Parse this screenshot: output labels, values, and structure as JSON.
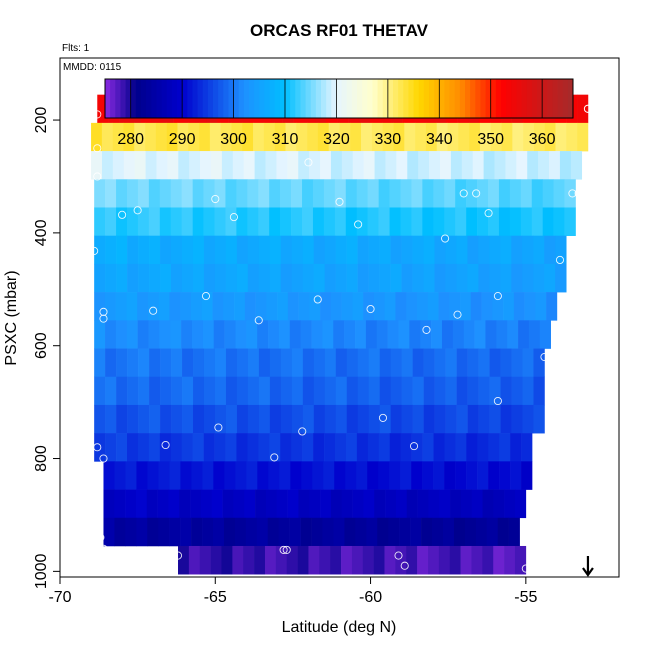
{
  "chart_data": {
    "type": "heatmap",
    "title": "ORCAS RF01 THETAV",
    "annotations": [
      "Flts: 1",
      "MMDD: 0115"
    ],
    "xlabel": "Latitude (deg N)",
    "ylabel": "PSXC (mbar)",
    "xlim": [
      -70,
      -52
    ],
    "ylim": [
      1010,
      90
    ],
    "y_reversed": true,
    "x_ticks": [
      -70,
      -65,
      -60,
      -55
    ],
    "y_ticks": [
      200,
      400,
      600,
      800,
      1000
    ],
    "colorbar": {
      "range": [
        275,
        366
      ],
      "ticks": [
        280,
        290,
        300,
        310,
        320,
        330,
        340,
        350,
        360
      ],
      "stops": [
        {
          "v": 275,
          "c": "#8a2be2"
        },
        {
          "v": 281,
          "c": "#00008b"
        },
        {
          "v": 290,
          "c": "#0000cd"
        },
        {
          "v": 302,
          "c": "#1e90ff"
        },
        {
          "v": 310,
          "c": "#00bfff"
        },
        {
          "v": 320,
          "c": "#e6f5ff"
        },
        {
          "v": 327,
          "c": "#ffffcc"
        },
        {
          "v": 336,
          "c": "#ffd700"
        },
        {
          "v": 344,
          "c": "#ff8c00"
        },
        {
          "v": 352,
          "c": "#ff0000"
        },
        {
          "v": 366,
          "c": "#a52a2a"
        }
      ]
    },
    "pressure_bands": [
      {
        "p": 180,
        "value": 355,
        "lat_min": -68.8,
        "lat_max": -53.0
      },
      {
        "p": 230,
        "value": 333,
        "lat_min": -69.0,
        "lat_max": -53.0
      },
      {
        "p": 280,
        "value": 320,
        "lat_min": -69.0,
        "lat_max": -53.2
      },
      {
        "p": 330,
        "value": 315,
        "lat_min": -68.9,
        "lat_max": -53.4
      },
      {
        "p": 380,
        "value": 312,
        "lat_min": -68.9,
        "lat_max": -53.4
      },
      {
        "p": 430,
        "value": 307,
        "lat_min": -68.9,
        "lat_max": -53.7
      },
      {
        "p": 480,
        "value": 306,
        "lat_min": -68.9,
        "lat_max": -53.7
      },
      {
        "p": 530,
        "value": 304,
        "lat_min": -68.9,
        "lat_max": -54.0
      },
      {
        "p": 580,
        "value": 302,
        "lat_min": -68.9,
        "lat_max": -54.2
      },
      {
        "p": 630,
        "value": 300,
        "lat_min": -68.9,
        "lat_max": -54.4
      },
      {
        "p": 680,
        "value": 299,
        "lat_min": -68.9,
        "lat_max": -54.4
      },
      {
        "p": 730,
        "value": 297,
        "lat_min": -68.9,
        "lat_max": -54.4
      },
      {
        "p": 780,
        "value": 295,
        "lat_min": -68.9,
        "lat_max": -54.8
      },
      {
        "p": 830,
        "value": 292,
        "lat_min": -68.6,
        "lat_max": -54.8
      },
      {
        "p": 880,
        "value": 289,
        "lat_min": -68.6,
        "lat_max": -55.0
      },
      {
        "p": 930,
        "value": 284,
        "lat_min": -68.6,
        "lat_max": -55.2
      },
      {
        "p": 980,
        "value": 279,
        "lat_min": -66.2,
        "lat_max": -55.0
      }
    ],
    "flight_points": [
      [
        -68.8,
        190
      ],
      [
        -68.8,
        250
      ],
      [
        -68.8,
        300
      ],
      [
        -68.0,
        368
      ],
      [
        -67.5,
        360
      ],
      [
        -66.2,
        180
      ],
      [
        -65.0,
        340
      ],
      [
        -64.4,
        372
      ],
      [
        -62.0,
        275
      ],
      [
        -61.0,
        345
      ],
      [
        -60.4,
        180
      ],
      [
        -60.4,
        385
      ],
      [
        -57.0,
        330
      ],
      [
        -56.6,
        330
      ],
      [
        -56.2,
        365
      ],
      [
        -56.0,
        180
      ],
      [
        -53.0,
        180
      ],
      [
        -53.0,
        180
      ],
      [
        -53.5,
        330
      ],
      [
        -53.3,
        330
      ],
      [
        -55.9,
        512
      ],
      [
        -57.2,
        545
      ],
      [
        -58.2,
        572
      ],
      [
        -60.0,
        535
      ],
      [
        -61.7,
        518
      ],
      [
        -63.6,
        555
      ],
      [
        -65.3,
        512
      ],
      [
        -67.0,
        538
      ],
      [
        -68.6,
        540
      ],
      [
        -68.6,
        552
      ],
      [
        -68.9,
        432
      ],
      [
        -57.6,
        410
      ],
      [
        -53.9,
        448
      ],
      [
        -54.4,
        620
      ],
      [
        -55.9,
        698
      ],
      [
        -59.6,
        728
      ],
      [
        -58.6,
        778
      ],
      [
        -62.2,
        752
      ],
      [
        -63.1,
        798
      ],
      [
        -64.9,
        745
      ],
      [
        -66.6,
        776
      ],
      [
        -68.8,
        780
      ],
      [
        -68.6,
        800
      ],
      [
        -68.7,
        940
      ],
      [
        -68.6,
        960
      ],
      [
        -66.2,
        972
      ],
      [
        -62.8,
        962
      ],
      [
        -62.7,
        962
      ],
      [
        -59.1,
        972
      ],
      [
        -58.9,
        990
      ],
      [
        -55.0,
        995
      ],
      [
        -54.6,
        940
      ],
      [
        -54.2,
        840
      ]
    ],
    "arrow_latitude": -53.0
  }
}
